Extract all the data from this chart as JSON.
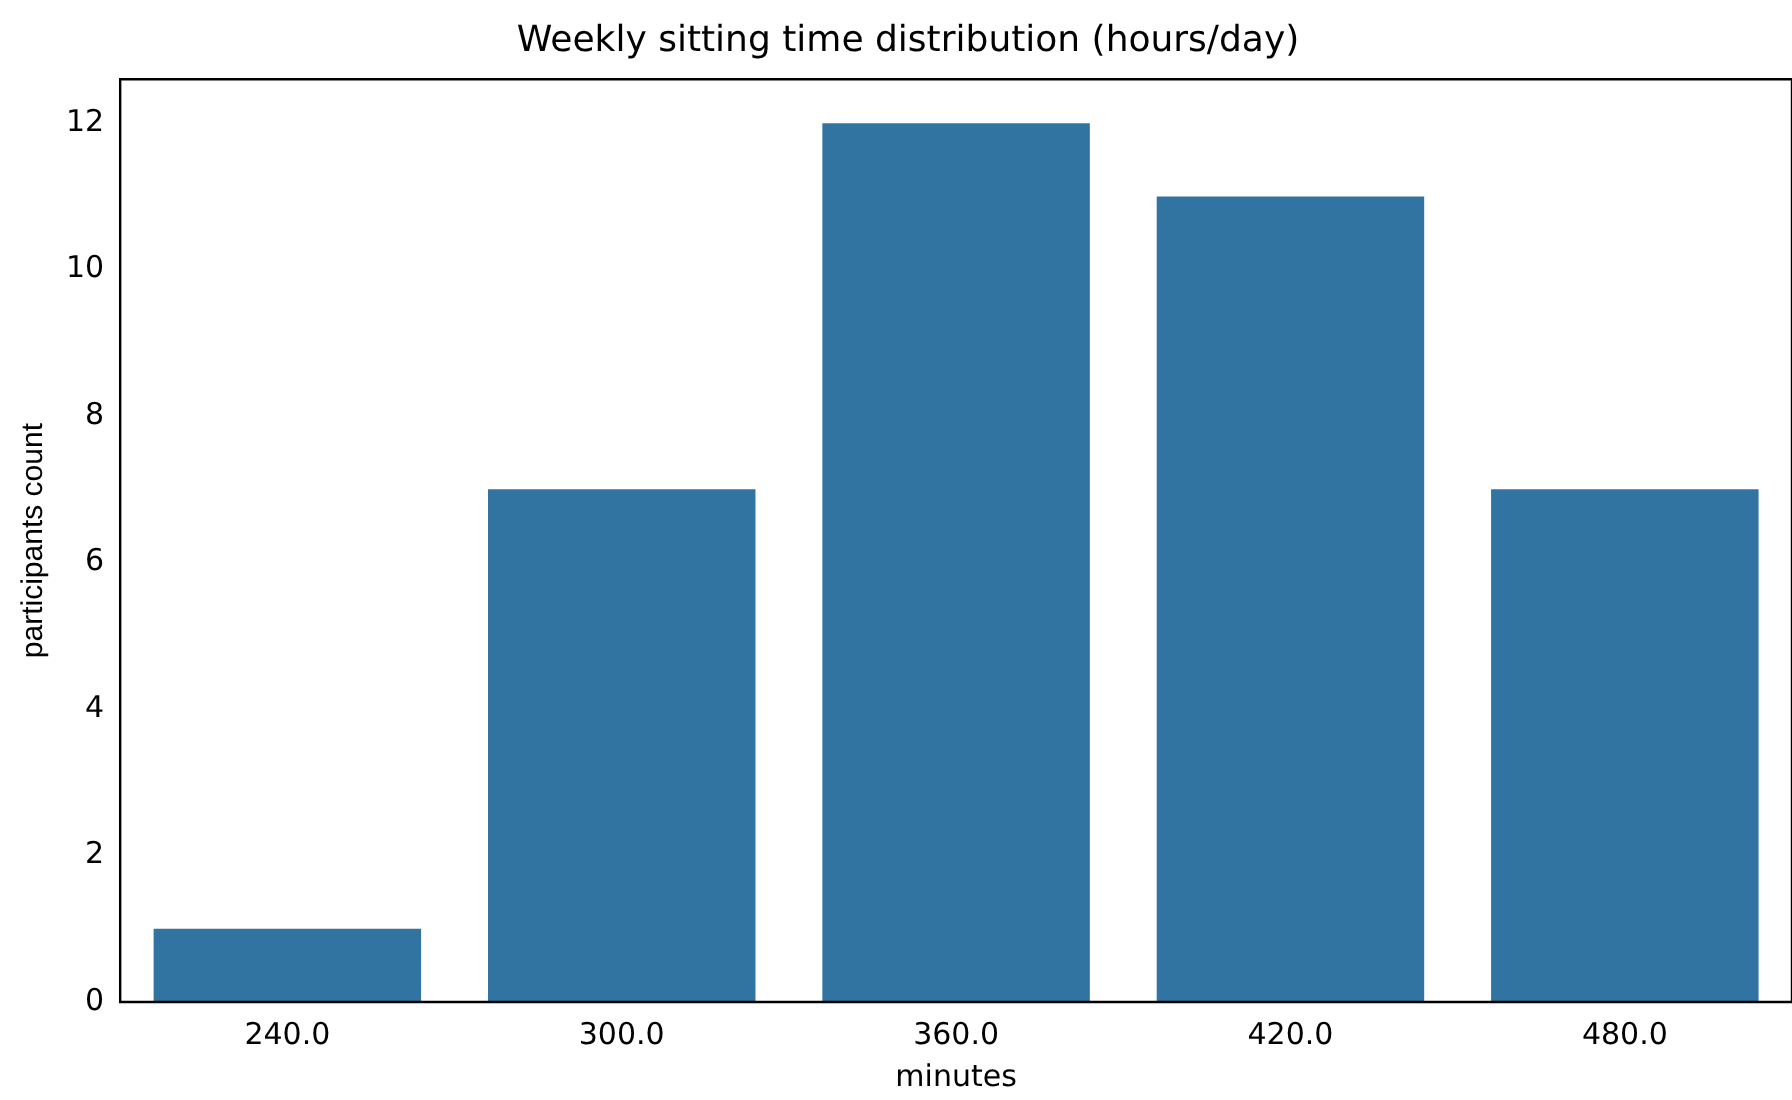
{
  "chart_data": {
    "type": "bar",
    "title": "Weekly sitting time distribution (hours/day)",
    "xlabel": "minutes",
    "ylabel": "participants count",
    "categories": [
      "240.0",
      "300.0",
      "360.0",
      "420.0",
      "480.0"
    ],
    "values": [
      1,
      7,
      12,
      11,
      7
    ],
    "color": "#3274a1",
    "ylim": [
      0,
      12.6
    ],
    "yticks": [
      0,
      2,
      4,
      6,
      8,
      10,
      12
    ],
    "grid": false,
    "legend": false
  }
}
